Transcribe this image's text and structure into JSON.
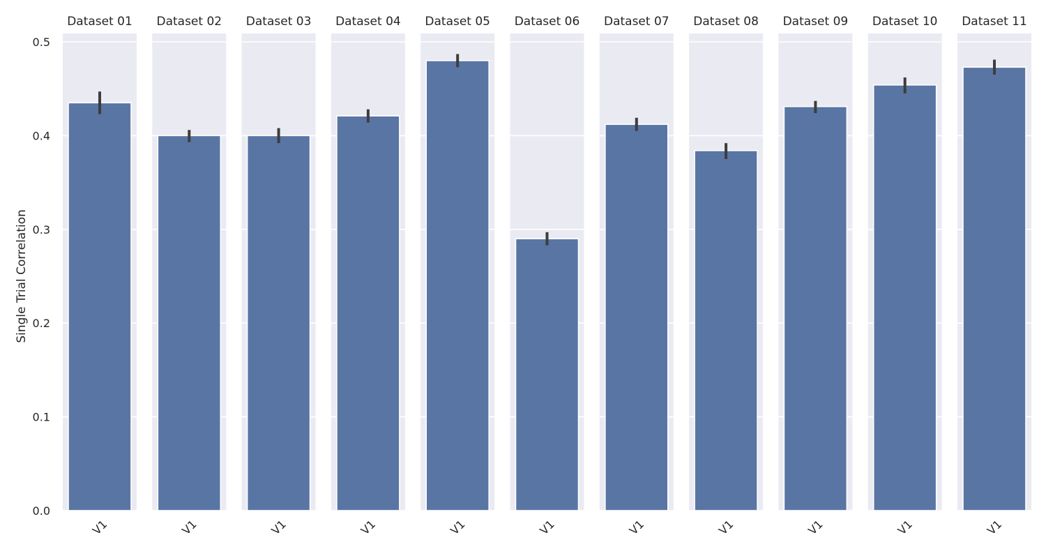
{
  "chart_data": {
    "type": "bar",
    "ylabel": "Single Trial Correlation",
    "xlabel": "",
    "ylim": [
      0,
      0.5
    ],
    "yticks": [
      "0.0",
      "0.1",
      "0.2",
      "0.3",
      "0.4",
      "0.5"
    ],
    "grid": true,
    "colors": {
      "bar": "#5975a4",
      "panel": "#eaeaf2",
      "error": "#3d3d3d"
    },
    "panels": [
      {
        "title": "Dataset 01",
        "category": "V1",
        "value": 0.435,
        "ci": [
          0.423,
          0.447
        ]
      },
      {
        "title": "Dataset 02",
        "category": "V1",
        "value": 0.4,
        "ci": [
          0.393,
          0.406
        ]
      },
      {
        "title": "Dataset 03",
        "category": "V1",
        "value": 0.4,
        "ci": [
          0.392,
          0.408
        ]
      },
      {
        "title": "Dataset 04",
        "category": "V1",
        "value": 0.421,
        "ci": [
          0.414,
          0.428
        ]
      },
      {
        "title": "Dataset 05",
        "category": "V1",
        "value": 0.48,
        "ci": [
          0.473,
          0.487
        ]
      },
      {
        "title": "Dataset 06",
        "category": "V1",
        "value": 0.29,
        "ci": [
          0.283,
          0.297
        ]
      },
      {
        "title": "Dataset 07",
        "category": "V1",
        "value": 0.412,
        "ci": [
          0.405,
          0.419
        ]
      },
      {
        "title": "Dataset 08",
        "category": "V1",
        "value": 0.384,
        "ci": [
          0.375,
          0.392
        ]
      },
      {
        "title": "Dataset 09",
        "category": "V1",
        "value": 0.431,
        "ci": [
          0.424,
          0.437
        ]
      },
      {
        "title": "Dataset 10",
        "category": "V1",
        "value": 0.454,
        "ci": [
          0.445,
          0.462
        ]
      },
      {
        "title": "Dataset 11",
        "category": "V1",
        "value": 0.473,
        "ci": [
          0.465,
          0.481
        ]
      }
    ]
  }
}
